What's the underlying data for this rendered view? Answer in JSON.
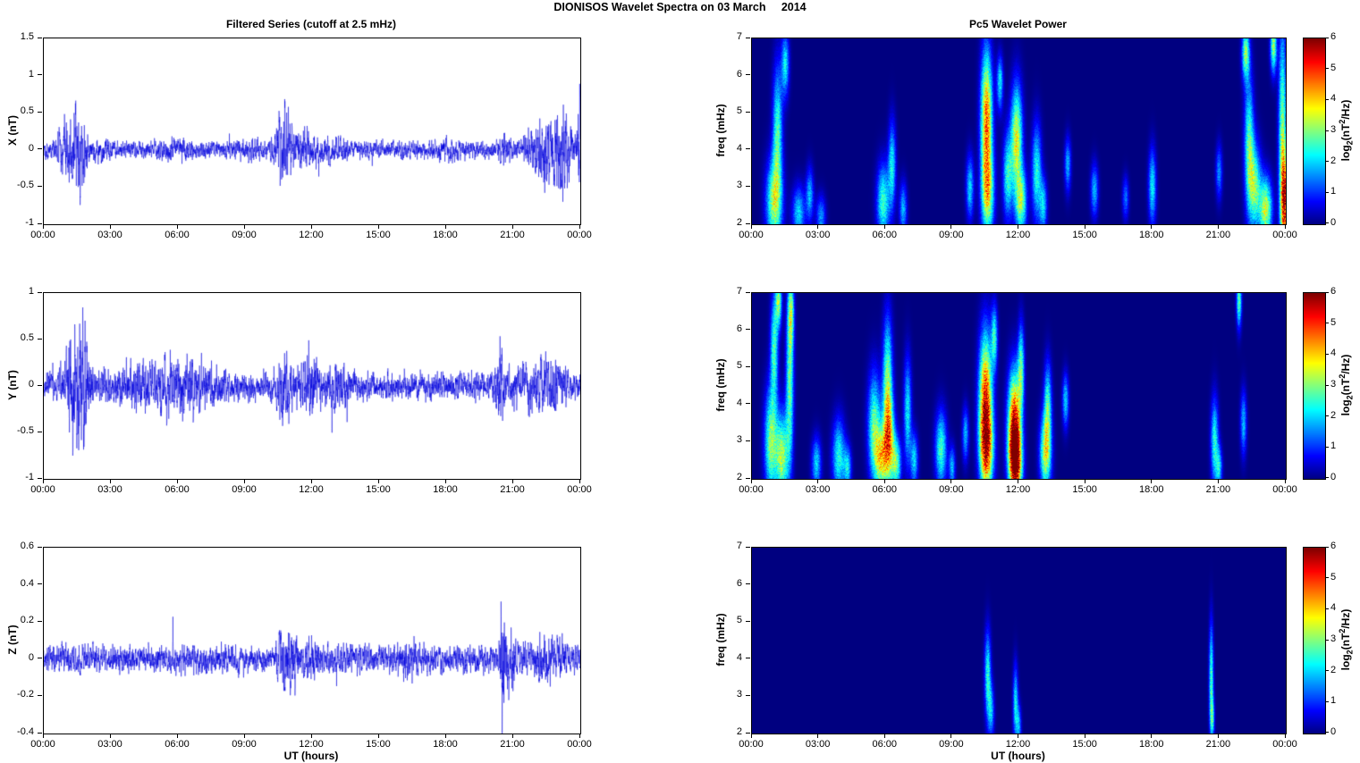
{
  "figure": {
    "title": "DIONISOS Wavelet Spectra on 03 March     2014"
  },
  "time_axis": {
    "label": "UT (hours)",
    "hours_range": [
      0,
      24
    ],
    "tick_hours": [
      0,
      3,
      6,
      9,
      12,
      15,
      18,
      21,
      24
    ],
    "tick_labels": [
      "00:00",
      "03:00",
      "06:00",
      "09:00",
      "12:00",
      "15:00",
      "18:00",
      "21:00",
      "00:00"
    ]
  },
  "colorbar": {
    "lim": [
      0,
      6
    ],
    "ticks": [
      0,
      1,
      2,
      3,
      4,
      5,
      6
    ],
    "prefix": "log",
    "sub": "2",
    "mid": "(nT",
    "sup": "2",
    "suffix": "/Hz)"
  },
  "chart_data": [
    {
      "type": "line",
      "panel": "filtered-series-x",
      "title": "Filtered Series (cutoff at 2.5 mHz)",
      "ylabel": "X (nT)",
      "ylim": [
        -1,
        1.5
      ],
      "yticks": [
        -1,
        -0.5,
        0,
        0.5,
        1,
        1.5
      ],
      "line_color": "#0000dd",
      "seed": 101,
      "base_amplitude": 0.09,
      "burst_format": [
        "t_hours",
        "sigma_hours",
        "amplitude_nT"
      ],
      "bursts": [
        [
          1.2,
          0.35,
          0.3
        ],
        [
          1.65,
          0.2,
          0.2
        ],
        [
          2.6,
          0.3,
          0.05
        ],
        [
          6.0,
          0.5,
          0.04
        ],
        [
          9.2,
          0.4,
          0.04
        ],
        [
          10.75,
          0.22,
          0.38
        ],
        [
          11.5,
          0.3,
          0.1
        ],
        [
          12.1,
          0.25,
          0.08
        ],
        [
          13.0,
          0.4,
          0.05
        ],
        [
          18.0,
          0.4,
          0.04
        ],
        [
          20.6,
          0.15,
          0.1
        ],
        [
          21.9,
          0.3,
          0.08
        ],
        [
          22.7,
          0.45,
          0.26
        ],
        [
          23.3,
          0.25,
          0.2
        ],
        [
          23.97,
          0.07,
          0.45
        ]
      ]
    },
    {
      "type": "line",
      "panel": "filtered-series-y",
      "ylabel": "Y (nT)",
      "ylim": [
        -1,
        1
      ],
      "yticks": [
        -1,
        -0.5,
        0,
        0.5,
        1
      ],
      "line_color": "#0000dd",
      "seed": 202,
      "base_amplitude": 0.11,
      "burst_format": [
        "t_hours",
        "sigma_hours",
        "amplitude_nT"
      ],
      "bursts": [
        [
          1.45,
          0.3,
          0.42
        ],
        [
          1.85,
          0.15,
          0.2
        ],
        [
          4.5,
          1.1,
          0.08
        ],
        [
          6.2,
          0.9,
          0.1
        ],
        [
          7.6,
          0.4,
          0.05
        ],
        [
          10.75,
          0.28,
          0.22
        ],
        [
          11.9,
          0.3,
          0.2
        ],
        [
          13.2,
          0.3,
          0.09
        ],
        [
          20.4,
          0.12,
          0.24
        ],
        [
          21.6,
          0.7,
          0.08
        ],
        [
          22.6,
          0.5,
          0.1
        ]
      ]
    },
    {
      "type": "line",
      "panel": "filtered-series-z",
      "ylabel": "Z (nT)",
      "ylim": [
        -0.4,
        0.6
      ],
      "yticks": [
        -0.4,
        -0.2,
        0,
        0.2,
        0.4,
        0.6
      ],
      "line_color": "#0000dd",
      "seed": 303,
      "base_amplitude": 0.055,
      "burst_format": [
        "t_hours",
        "sigma_hours",
        "amplitude_nT"
      ],
      "bursts": [
        [
          10.8,
          0.25,
          0.09
        ],
        [
          11.2,
          0.15,
          0.05
        ],
        [
          12.0,
          0.2,
          0.04
        ],
        [
          16.3,
          0.3,
          0.03
        ],
        [
          20.55,
          0.08,
          0.28
        ],
        [
          20.9,
          0.25,
          0.07
        ],
        [
          22.4,
          0.3,
          0.06
        ],
        [
          23.1,
          0.2,
          0.04
        ]
      ]
    },
    {
      "type": "heatmap",
      "panel": "wavelet-power-x",
      "title": "Pc5 Wavelet Power",
      "ylabel": "freq (mHz)",
      "ylim": [
        2,
        7
      ],
      "yticks": [
        2,
        3,
        4,
        5,
        6,
        7
      ],
      "seed": 11,
      "blob_format": [
        "t_hours",
        "freq_mHz",
        "sigma_t",
        "sigma_f",
        "log2_power"
      ],
      "blobs": [
        [
          1.0,
          2.6,
          0.25,
          0.8,
          3.2
        ],
        [
          1.15,
          4.5,
          0.15,
          1.2,
          2.6
        ],
        [
          1.5,
          6.3,
          0.12,
          0.6,
          2.2
        ],
        [
          2.1,
          2.3,
          0.2,
          0.5,
          2.0
        ],
        [
          2.6,
          2.8,
          0.12,
          0.5,
          1.8
        ],
        [
          3.1,
          2.2,
          0.15,
          0.4,
          1.6
        ],
        [
          5.9,
          2.6,
          0.2,
          0.7,
          2.6
        ],
        [
          6.3,
          3.6,
          0.12,
          0.8,
          2.2
        ],
        [
          6.8,
          2.4,
          0.12,
          0.5,
          1.8
        ],
        [
          9.8,
          3.0,
          0.12,
          0.6,
          2.0
        ],
        [
          10.55,
          4.8,
          0.18,
          1.3,
          4.6
        ],
        [
          10.6,
          2.8,
          0.2,
          0.8,
          3.0
        ],
        [
          11.15,
          5.8,
          0.1,
          0.5,
          2.2
        ],
        [
          11.5,
          3.3,
          0.15,
          0.8,
          2.4
        ],
        [
          11.9,
          4.3,
          0.18,
          1.0,
          3.6
        ],
        [
          12.1,
          2.6,
          0.18,
          0.6,
          3.0
        ],
        [
          12.8,
          3.4,
          0.15,
          0.9,
          2.4
        ],
        [
          13.1,
          2.5,
          0.12,
          0.5,
          2.0
        ],
        [
          14.2,
          3.6,
          0.1,
          0.5,
          1.8
        ],
        [
          15.4,
          2.9,
          0.12,
          0.5,
          1.8
        ],
        [
          16.8,
          2.7,
          0.1,
          0.4,
          1.4
        ],
        [
          18.0,
          3.0,
          0.12,
          0.7,
          2.2
        ],
        [
          21.0,
          3.4,
          0.1,
          0.5,
          1.6
        ],
        [
          22.2,
          6.6,
          0.12,
          0.5,
          3.0
        ],
        [
          22.35,
          4.2,
          0.15,
          1.2,
          2.6
        ],
        [
          22.6,
          3.0,
          0.2,
          0.8,
          2.8
        ],
        [
          23.1,
          2.4,
          0.2,
          0.6,
          3.4
        ],
        [
          23.45,
          6.8,
          0.1,
          0.5,
          3.2
        ],
        [
          23.85,
          4.5,
          0.12,
          2.0,
          3.0
        ],
        [
          23.95,
          2.6,
          0.12,
          0.9,
          4.4
        ]
      ]
    },
    {
      "type": "heatmap",
      "panel": "wavelet-power-y",
      "ylabel": "freq (mHz)",
      "ylim": [
        2,
        7
      ],
      "yticks": [
        2,
        3,
        4,
        5,
        6,
        7
      ],
      "seed": 22,
      "blob_format": [
        "t_hours",
        "freq_mHz",
        "sigma_t",
        "sigma_f",
        "log2_power"
      ],
      "blobs": [
        [
          0.85,
          3.0,
          0.2,
          1.0,
          3.0
        ],
        [
          1.0,
          5.5,
          0.12,
          1.0,
          2.6
        ],
        [
          1.2,
          6.8,
          0.1,
          0.5,
          3.0
        ],
        [
          1.35,
          2.6,
          0.2,
          0.8,
          3.2
        ],
        [
          1.7,
          4.5,
          0.12,
          1.5,
          2.8
        ],
        [
          1.75,
          6.5,
          0.1,
          0.7,
          2.6
        ],
        [
          2.9,
          2.4,
          0.15,
          0.5,
          2.0
        ],
        [
          3.9,
          2.6,
          0.2,
          0.7,
          2.4
        ],
        [
          4.3,
          2.3,
          0.12,
          0.4,
          2.0
        ],
        [
          5.5,
          3.4,
          0.2,
          1.0,
          2.8
        ],
        [
          5.8,
          2.5,
          0.2,
          0.6,
          3.0
        ],
        [
          6.1,
          4.6,
          0.15,
          1.2,
          3.0
        ],
        [
          6.15,
          3.0,
          0.18,
          0.8,
          3.6
        ],
        [
          6.5,
          2.4,
          0.15,
          0.5,
          2.6
        ],
        [
          7.0,
          3.8,
          0.12,
          1.0,
          2.2
        ],
        [
          7.3,
          2.5,
          0.12,
          0.5,
          2.0
        ],
        [
          8.5,
          2.8,
          0.18,
          0.7,
          2.6
        ],
        [
          9.0,
          2.3,
          0.1,
          0.4,
          1.8
        ],
        [
          9.6,
          3.2,
          0.1,
          0.5,
          1.8
        ],
        [
          10.5,
          4.2,
          0.2,
          1.2,
          4.8
        ],
        [
          10.55,
          2.8,
          0.22,
          0.8,
          4.0
        ],
        [
          10.9,
          5.8,
          0.1,
          0.6,
          2.4
        ],
        [
          11.8,
          3.4,
          0.2,
          1.0,
          5.6
        ],
        [
          11.85,
          2.4,
          0.2,
          0.6,
          4.6
        ],
        [
          12.1,
          5.0,
          0.1,
          0.8,
          2.6
        ],
        [
          13.2,
          2.7,
          0.18,
          0.7,
          3.4
        ],
        [
          13.3,
          4.0,
          0.12,
          0.8,
          2.4
        ],
        [
          14.1,
          4.1,
          0.1,
          0.5,
          2.0
        ],
        [
          20.8,
          3.0,
          0.12,
          0.8,
          2.4
        ],
        [
          21.0,
          2.3,
          0.1,
          0.4,
          2.0
        ],
        [
          21.9,
          6.8,
          0.08,
          0.5,
          2.8
        ],
        [
          22.1,
          3.5,
          0.1,
          0.6,
          1.8
        ]
      ]
    },
    {
      "type": "heatmap",
      "panel": "wavelet-power-z",
      "ylabel": "freq (mHz)",
      "ylim": [
        2,
        7
      ],
      "yticks": [
        2,
        3,
        4,
        5,
        6,
        7
      ],
      "seed": 33,
      "blob_format": [
        "t_hours",
        "freq_mHz",
        "sigma_t",
        "sigma_f",
        "log2_power"
      ],
      "blobs": [
        [
          10.6,
          3.6,
          0.1,
          0.8,
          2.4
        ],
        [
          10.75,
          2.6,
          0.1,
          0.5,
          1.8
        ],
        [
          11.85,
          2.8,
          0.08,
          0.7,
          2.2
        ],
        [
          12.0,
          2.2,
          0.08,
          0.4,
          1.6
        ],
        [
          20.65,
          3.5,
          0.07,
          1.0,
          2.6
        ],
        [
          20.7,
          2.4,
          0.07,
          0.4,
          1.8
        ]
      ]
    }
  ]
}
